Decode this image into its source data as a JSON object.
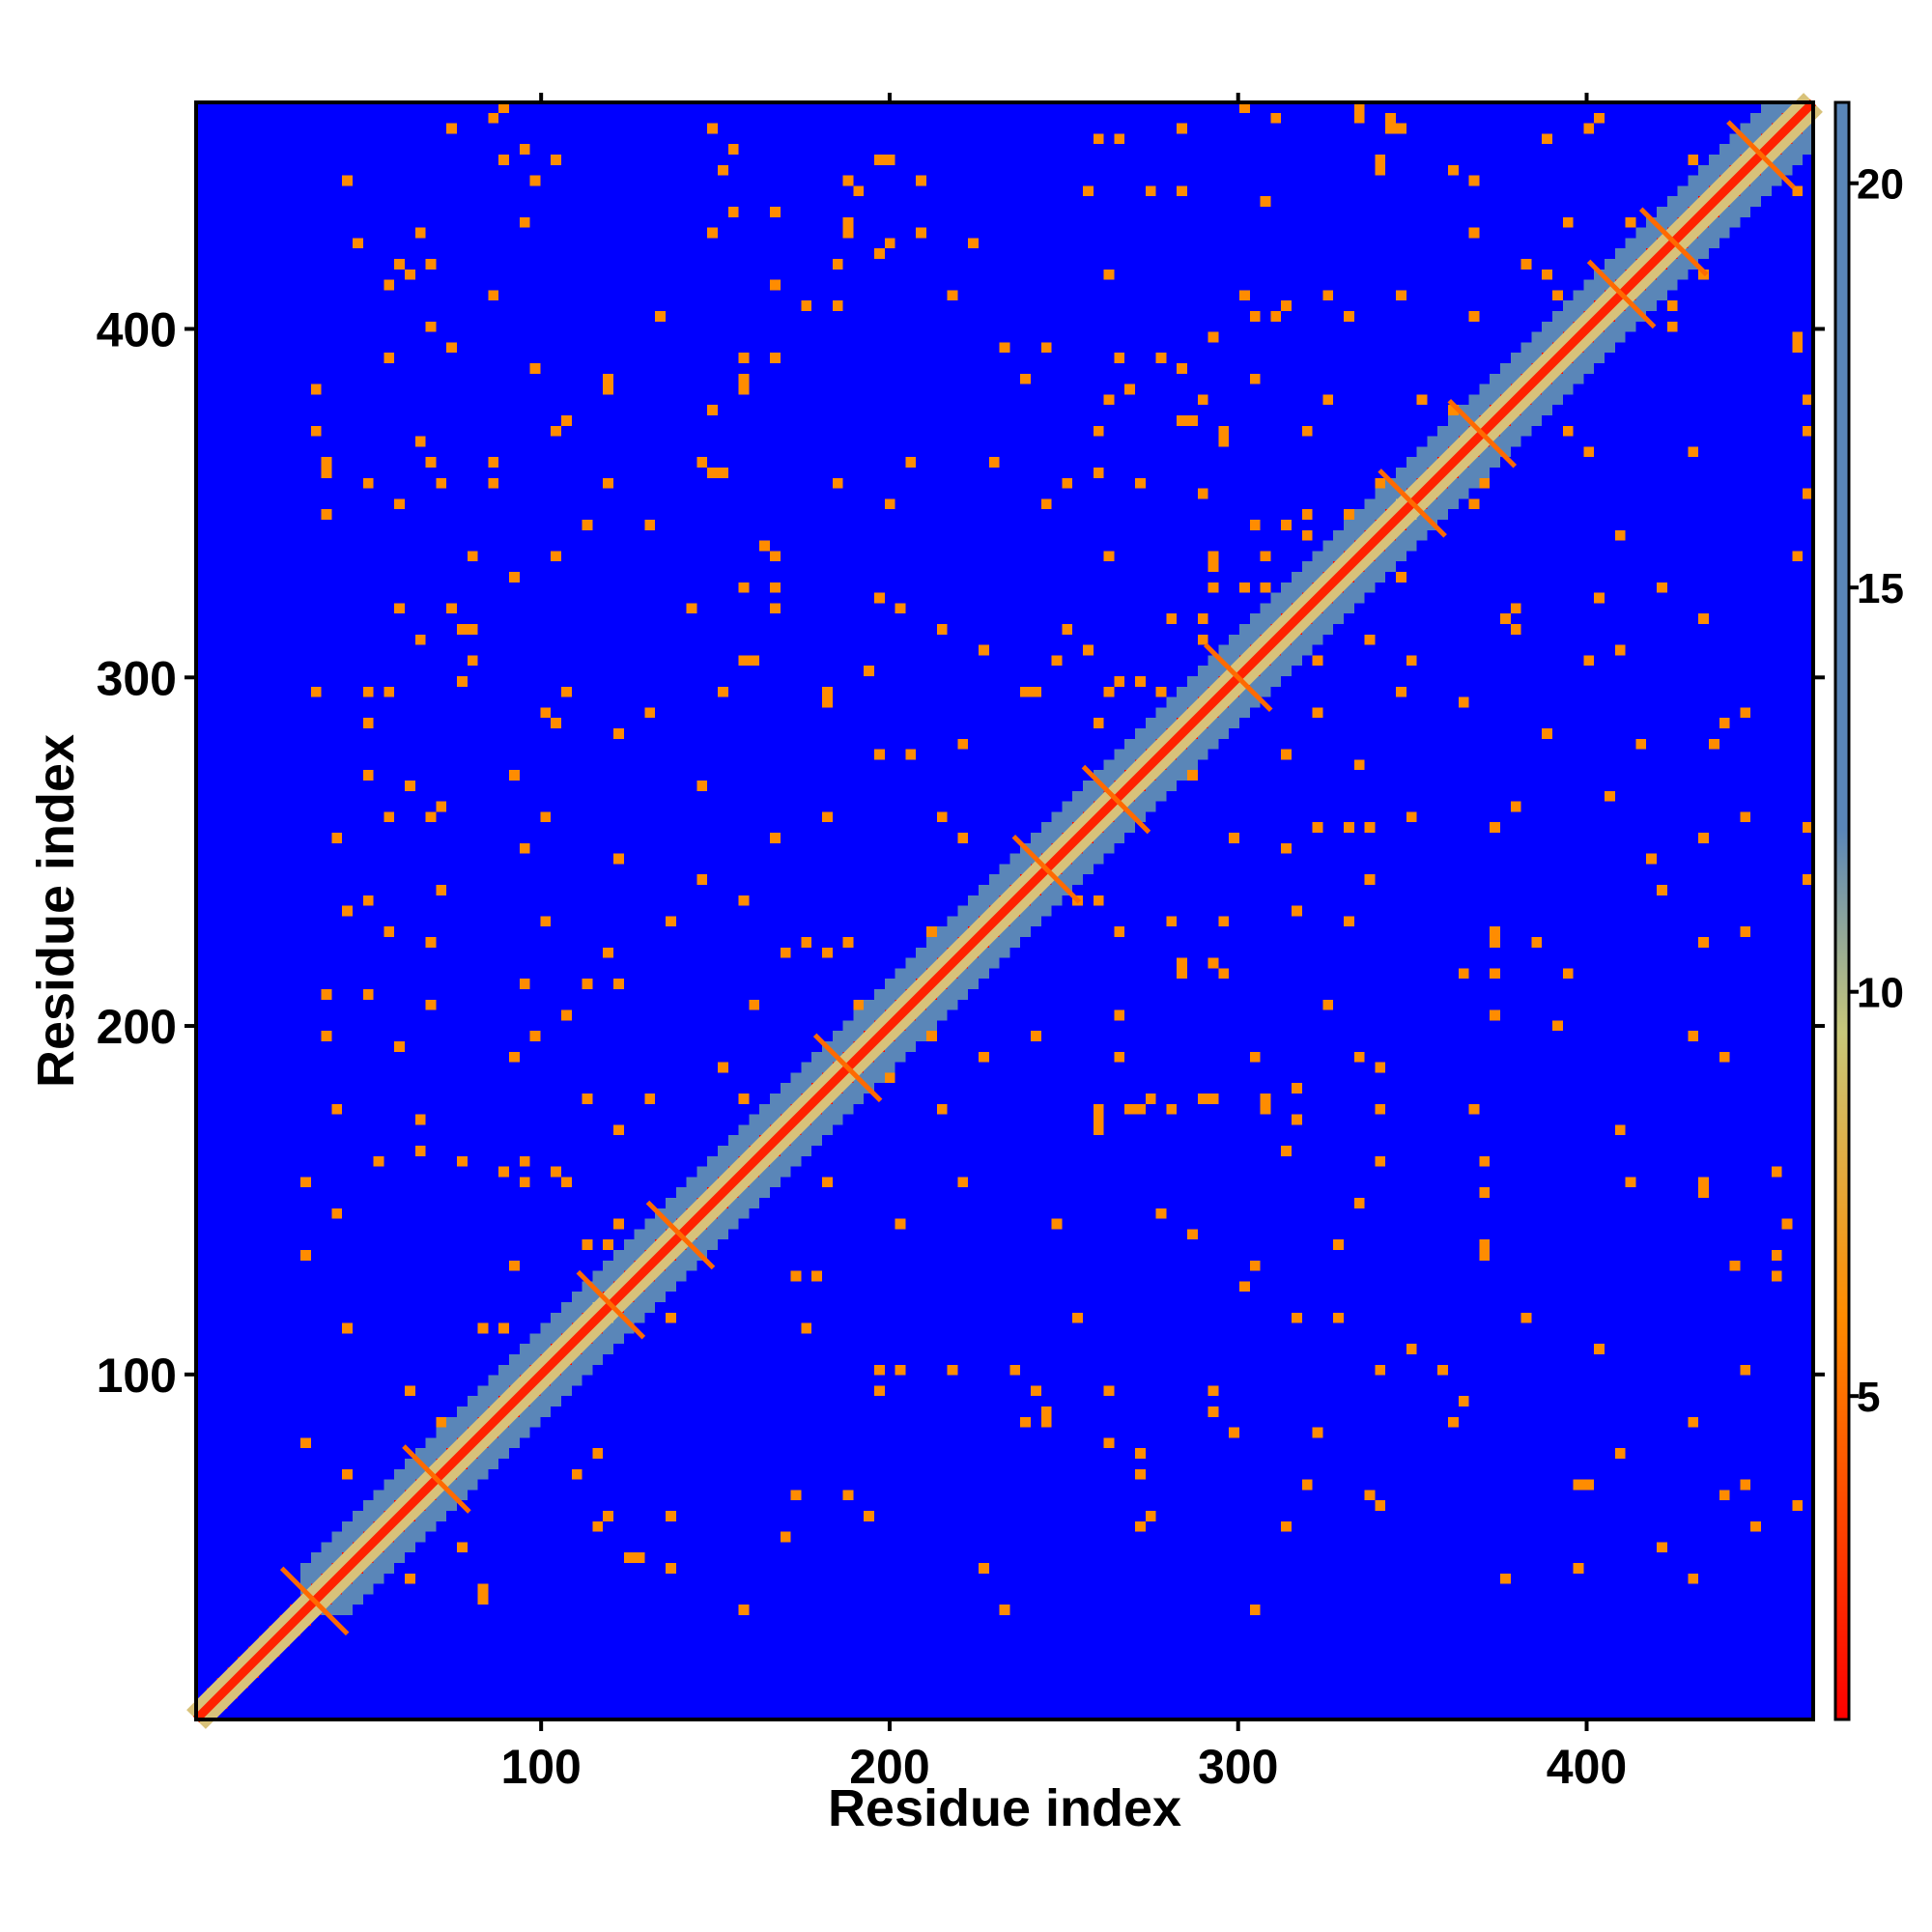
{
  "chart_data": {
    "type": "heatmap",
    "title": "",
    "xlabel": "Residue index",
    "ylabel": "Residue index",
    "n_residues": 465,
    "xlim": [
      1,
      465
    ],
    "ylim": [
      1,
      465
    ],
    "x_ticks": [
      100,
      200,
      300,
      400
    ],
    "y_ticks": [
      100,
      200,
      300,
      400
    ],
    "colorbar": {
      "range": [
        1,
        21
      ],
      "ticks": [
        5,
        10,
        15,
        20
      ],
      "colors": [
        "#ff0000",
        "#ff8c00",
        "#c8c87a",
        "#5a86b8",
        "#0000ff"
      ],
      "stops": [
        1,
        6,
        9.5,
        12,
        21
      ]
    },
    "diagonal_crossings": [
      {
        "x": 35,
        "y": 35
      },
      {
        "x": 70,
        "y": 70
      },
      {
        "x": 120,
        "y": 120
      },
      {
        "x": 140,
        "y": 140
      },
      {
        "x": 188,
        "y": 188
      },
      {
        "x": 245,
        "y": 245
      },
      {
        "x": 265,
        "y": 265
      },
      {
        "x": 300,
        "y": 300
      },
      {
        "x": 350,
        "y": 350
      },
      {
        "x": 370,
        "y": 370
      },
      {
        "x": 410,
        "y": 410
      },
      {
        "x": 425,
        "y": 425
      },
      {
        "x": 450,
        "y": 450
      }
    ],
    "grid": false,
    "legend": "colorbar-right"
  }
}
